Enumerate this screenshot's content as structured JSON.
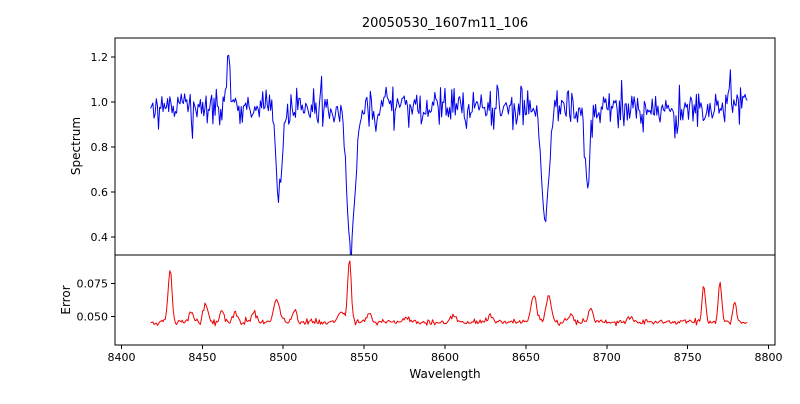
{
  "window": {
    "title": "20050530_1607m11_106"
  },
  "chart_data": {
    "type": "line",
    "title": "20050530_1607m11_106",
    "xlabel": "Wavelength",
    "grid": false,
    "legend": "none",
    "background": "#ffffff",
    "x_start": 8418,
    "x_end": 8787,
    "x_step": 0.7,
    "xlim": [
      8396,
      8804
    ],
    "xtick_values": [
      8400,
      8450,
      8500,
      8550,
      8600,
      8650,
      8700,
      8750,
      8800
    ],
    "xtick_labels": [
      "8400",
      "8450",
      "8500",
      "8550",
      "8600",
      "8650",
      "8700",
      "8750",
      "8800"
    ],
    "panels": [
      {
        "name": "spectrum",
        "ylabel": "Spectrum",
        "ylim": [
          0.32,
          1.285
        ],
        "ytick_values": [
          0.4,
          0.6,
          0.8,
          1.0,
          1.2
        ],
        "ytick_labels": [
          "0.4",
          "0.6",
          "0.8",
          "1.0",
          "1.2"
        ],
        "line_color": "#0000ee",
        "baseline": 0.975,
        "noise_sigma": 0.042,
        "seed": 12345,
        "features": [
          {
            "label": "absorption-CaII-8498",
            "center": 8497.5,
            "amp": -0.4,
            "sigma": 1.9
          },
          {
            "label": "absorption-CaII-8542",
            "center": 8542.0,
            "amp": -0.63,
            "sigma": 2.6
          },
          {
            "label": "absorption-CaII-8662",
            "center": 8662.0,
            "amp": -0.53,
            "sigma": 2.2
          },
          {
            "label": "absorption-8688",
            "center": 8688.0,
            "amp": -0.36,
            "sigma": 1.5
          },
          {
            "label": "spike-8466",
            "center": 8466.0,
            "amp": 0.26,
            "sigma": 0.8
          },
          {
            "label": "spike-8776",
            "center": 8776.0,
            "amp": 0.13,
            "sigma": 0.9
          }
        ]
      },
      {
        "name": "error",
        "ylabel": "Error",
        "ylim": [
          0.028,
          0.097
        ],
        "ytick_values": [
          0.05,
          0.075
        ],
        "ytick_labels": [
          "0.050",
          "0.075"
        ],
        "line_color": "#ee0000",
        "baseline": 0.0455,
        "noise_sigma": 0.0011,
        "seed": 999,
        "features": [
          {
            "label": "peak-8430",
            "center": 8430,
            "amp": 0.04,
            "sigma": 1.2
          },
          {
            "label": "peak-8443",
            "center": 8443,
            "amp": 0.008,
            "sigma": 1.5
          },
          {
            "label": "peak-8452",
            "center": 8452,
            "amp": 0.014,
            "sigma": 1.5
          },
          {
            "label": "peak-8462",
            "center": 8462,
            "amp": 0.01,
            "sigma": 1.3
          },
          {
            "label": "peak-8470",
            "center": 8470,
            "amp": 0.009,
            "sigma": 1.2
          },
          {
            "label": "peak-8482",
            "center": 8482,
            "amp": 0.007,
            "sigma": 1.5
          },
          {
            "label": "peak-8496",
            "center": 8496,
            "amp": 0.017,
            "sigma": 1.7
          },
          {
            "label": "peak-8507",
            "center": 8507,
            "amp": 0.009,
            "sigma": 1.4
          },
          {
            "label": "peak-8536",
            "center": 8536,
            "amp": 0.008,
            "sigma": 2.5
          },
          {
            "label": "peak-8541",
            "center": 8541,
            "amp": 0.047,
            "sigma": 1.1
          },
          {
            "label": "peak-8553",
            "center": 8553,
            "amp": 0.007,
            "sigma": 1.5
          },
          {
            "label": "peak-8576",
            "center": 8576,
            "amp": 0.004,
            "sigma": 1.5
          },
          {
            "label": "peak-8605",
            "center": 8605,
            "amp": 0.005,
            "sigma": 1.5
          },
          {
            "label": "peak-8628",
            "center": 8628,
            "amp": 0.005,
            "sigma": 1.5
          },
          {
            "label": "peak-8655",
            "center": 8655,
            "amp": 0.02,
            "sigma": 1.8
          },
          {
            "label": "peak-8664",
            "center": 8664,
            "amp": 0.021,
            "sigma": 1.5
          },
          {
            "label": "peak-8678",
            "center": 8678,
            "amp": 0.006,
            "sigma": 1.5
          },
          {
            "label": "peak-8690",
            "center": 8690,
            "amp": 0.011,
            "sigma": 1.3
          },
          {
            "label": "peak-8715",
            "center": 8715,
            "amp": 0.004,
            "sigma": 1.5
          },
          {
            "label": "peak-8760",
            "center": 8760,
            "amp": 0.029,
            "sigma": 1.0
          },
          {
            "label": "peak-8770",
            "center": 8770,
            "amp": 0.031,
            "sigma": 1.0
          },
          {
            "label": "peak-8779",
            "center": 8779,
            "amp": 0.016,
            "sigma": 1.0
          }
        ]
      }
    ]
  }
}
